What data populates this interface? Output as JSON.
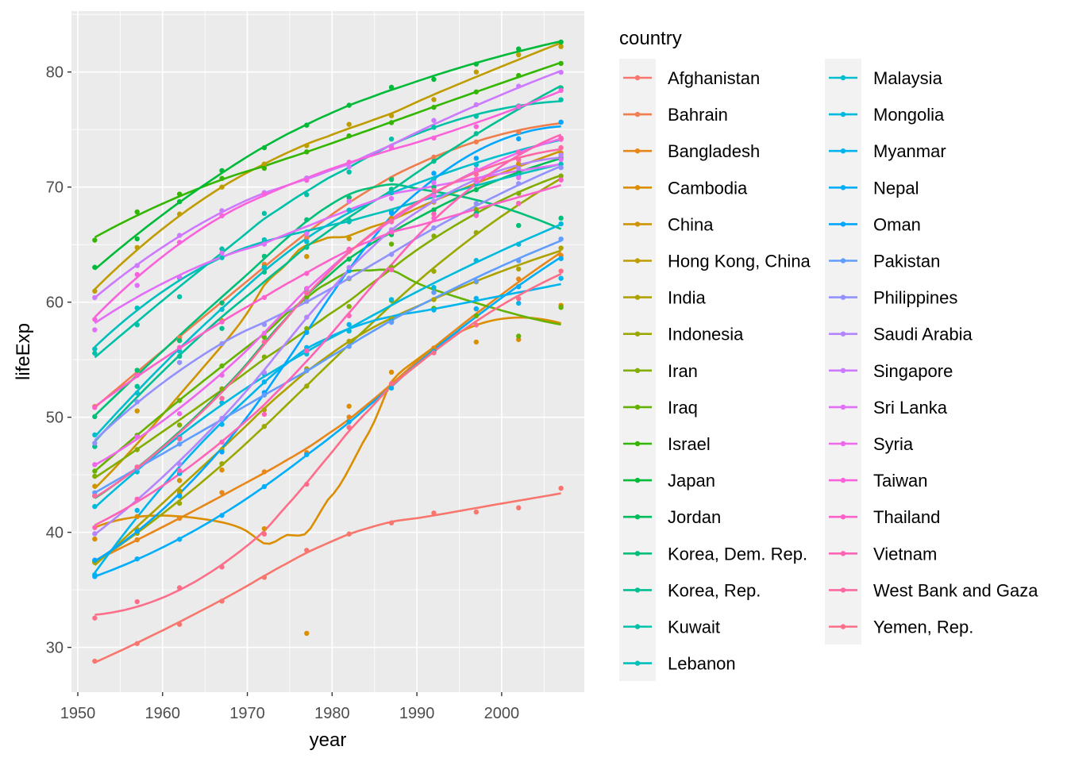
{
  "chart_data": {
    "type": "line",
    "subtype": "scatter with loess smooth",
    "xlabel": "year",
    "ylabel": "lifeExp",
    "legend_title": "country",
    "legend_position": "right",
    "grid": true,
    "xlim": [
      1949.25,
      2009.75
    ],
    "ylim": [
      26.11,
      85.29
    ],
    "x_ticks": [
      1950,
      1960,
      1970,
      1980,
      1990,
      2000
    ],
    "y_ticks": [
      30,
      40,
      50,
      60,
      70,
      80
    ],
    "x": [
      1952,
      1957,
      1962,
      1967,
      1972,
      1977,
      1982,
      1987,
      1992,
      1997,
      2002,
      2007
    ],
    "series": [
      {
        "name": "Afghanistan",
        "values": [
          28.801,
          30.332,
          31.997,
          34.02,
          36.088,
          38.438,
          39.854,
          40.822,
          41.674,
          41.763,
          42.129,
          43.828
        ]
      },
      {
        "name": "Bahrain",
        "values": [
          50.939,
          53.832,
          56.923,
          59.923,
          63.3,
          65.593,
          69.052,
          70.75,
          72.601,
          73.925,
          74.795,
          75.635
        ]
      },
      {
        "name": "Bangladesh",
        "values": [
          37.484,
          39.348,
          41.216,
          43.453,
          45.252,
          46.923,
          50.009,
          52.819,
          56.018,
          59.412,
          62.013,
          64.062
        ]
      },
      {
        "name": "Cambodia",
        "values": [
          39.417,
          41.366,
          43.415,
          45.415,
          40.317,
          31.22,
          50.957,
          53.914,
          55.803,
          56.534,
          56.752,
          59.723
        ]
      },
      {
        "name": "China",
        "values": [
          44.0,
          50.549,
          44.501,
          58.381,
          63.119,
          63.967,
          65.525,
          67.274,
          68.69,
          70.426,
          72.028,
          72.961
        ]
      },
      {
        "name": "Hong Kong, China",
        "values": [
          60.96,
          64.75,
          67.65,
          70.0,
          72.0,
          73.6,
          75.45,
          76.2,
          77.601,
          80.0,
          81.495,
          82.208
        ]
      },
      {
        "name": "India",
        "values": [
          37.373,
          40.249,
          43.605,
          47.193,
          50.651,
          54.208,
          56.596,
          58.553,
          60.223,
          61.765,
          62.879,
          64.698
        ]
      },
      {
        "name": "Indonesia",
        "values": [
          37.468,
          39.918,
          42.518,
          45.964,
          49.203,
          52.702,
          56.159,
          60.137,
          62.681,
          66.041,
          68.588,
          70.65
        ]
      },
      {
        "name": "Iran",
        "values": [
          44.869,
          47.181,
          49.325,
          52.469,
          55.234,
          57.702,
          59.62,
          63.04,
          65.742,
          68.042,
          69.451,
          70.964
        ]
      },
      {
        "name": "Iraq",
        "values": [
          45.32,
          48.437,
          51.457,
          54.459,
          56.95,
          60.413,
          62.038,
          65.044,
          59.461,
          58.811,
          57.046,
          59.545
        ]
      },
      {
        "name": "Israel",
        "values": [
          65.39,
          67.84,
          69.39,
          70.75,
          71.63,
          73.06,
          74.45,
          75.6,
          76.93,
          78.269,
          79.696,
          80.745
        ]
      },
      {
        "name": "Japan",
        "values": [
          63.03,
          65.5,
          68.73,
          71.43,
          73.42,
          75.38,
          77.11,
          78.67,
          79.36,
          80.69,
          82.0,
          82.603
        ]
      },
      {
        "name": "Jordan",
        "values": [
          43.158,
          45.669,
          48.126,
          51.629,
          56.528,
          61.134,
          63.739,
          65.869,
          68.015,
          69.772,
          71.263,
          72.535
        ]
      },
      {
        "name": "Korea, Dem. Rep.",
        "values": [
          50.056,
          54.081,
          56.656,
          59.942,
          63.983,
          67.159,
          69.1,
          70.647,
          69.978,
          67.727,
          66.662,
          67.297
        ]
      },
      {
        "name": "Korea, Rep.",
        "values": [
          47.453,
          52.681,
          55.292,
          57.716,
          62.612,
          64.766,
          67.123,
          69.81,
          72.244,
          74.647,
          77.045,
          78.623
        ]
      },
      {
        "name": "Kuwait",
        "values": [
          55.565,
          58.033,
          60.47,
          64.624,
          67.712,
          69.343,
          71.309,
          74.174,
          75.19,
          76.156,
          76.904,
          77.588
        ]
      },
      {
        "name": "Lebanon",
        "values": [
          55.928,
          59.489,
          62.094,
          63.87,
          65.421,
          66.099,
          66.983,
          67.926,
          69.292,
          70.265,
          71.028,
          71.993
        ]
      },
      {
        "name": "Malaysia",
        "values": [
          48.463,
          52.102,
          55.737,
          59.371,
          63.01,
          65.256,
          68.0,
          69.5,
          70.693,
          71.938,
          73.044,
          74.241
        ]
      },
      {
        "name": "Mongolia",
        "values": [
          42.244,
          45.248,
          48.251,
          51.253,
          53.754,
          55.491,
          57.489,
          60.222,
          61.271,
          63.625,
          65.033,
          66.803
        ]
      },
      {
        "name": "Myanmar",
        "values": [
          36.319,
          41.905,
          45.108,
          49.379,
          53.07,
          56.059,
          58.056,
          58.339,
          59.32,
          60.328,
          59.908,
          62.069
        ]
      },
      {
        "name": "Nepal",
        "values": [
          36.157,
          37.686,
          39.393,
          41.472,
          43.971,
          46.748,
          49.594,
          52.537,
          55.727,
          59.426,
          61.34,
          63.785
        ]
      },
      {
        "name": "Oman",
        "values": [
          37.578,
          40.08,
          43.165,
          46.988,
          52.143,
          57.367,
          62.728,
          67.734,
          71.197,
          72.499,
          74.193,
          75.64
        ]
      },
      {
        "name": "Pakistan",
        "values": [
          43.436,
          45.557,
          47.67,
          49.8,
          51.929,
          54.043,
          56.158,
          58.245,
          60.838,
          61.818,
          63.61,
          65.483
        ]
      },
      {
        "name": "Philippines",
        "values": [
          47.752,
          51.334,
          54.757,
          56.393,
          58.065,
          60.06,
          62.082,
          64.151,
          66.458,
          68.564,
          70.303,
          71.688
        ]
      },
      {
        "name": "Saudi Arabia",
        "values": [
          39.875,
          42.868,
          45.914,
          49.901,
          53.886,
          58.69,
          63.012,
          66.295,
          68.768,
          70.533,
          71.626,
          72.777
        ]
      },
      {
        "name": "Singapore",
        "values": [
          60.396,
          63.179,
          65.798,
          67.946,
          69.521,
          70.795,
          71.76,
          73.56,
          75.788,
          77.158,
          78.77,
          79.972
        ]
      },
      {
        "name": "Sri Lanka",
        "values": [
          57.593,
          61.456,
          62.192,
          64.266,
          65.042,
          65.949,
          68.757,
          69.011,
          70.379,
          70.457,
          70.815,
          72.396
        ]
      },
      {
        "name": "Syria",
        "values": [
          45.883,
          48.284,
          50.305,
          53.655,
          57.296,
          61.195,
          64.59,
          66.974,
          69.249,
          71.527,
          73.053,
          74.143
        ]
      },
      {
        "name": "Taiwan",
        "values": [
          58.5,
          62.4,
          65.2,
          67.5,
          69.39,
          70.59,
          72.16,
          73.4,
          74.26,
          75.25,
          76.99,
          78.4
        ]
      },
      {
        "name": "Thailand",
        "values": [
          50.848,
          53.63,
          56.061,
          58.285,
          60.405,
          62.494,
          64.597,
          66.084,
          67.298,
          67.521,
          68.564,
          70.616
        ]
      },
      {
        "name": "Vietnam",
        "values": [
          40.412,
          42.887,
          45.363,
          47.838,
          50.254,
          55.764,
          58.816,
          62.82,
          67.662,
          70.672,
          73.017,
          74.249
        ]
      },
      {
        "name": "West Bank and Gaza",
        "values": [
          43.16,
          45.671,
          48.127,
          51.631,
          56.532,
          60.765,
          64.406,
          67.046,
          69.718,
          71.096,
          72.37,
          73.422
        ]
      },
      {
        "name": "Yemen, Rep.",
        "values": [
          32.548,
          33.97,
          35.18,
          36.984,
          39.848,
          44.175,
          49.113,
          52.922,
          55.599,
          58.02,
          60.308,
          62.698
        ]
      }
    ]
  }
}
